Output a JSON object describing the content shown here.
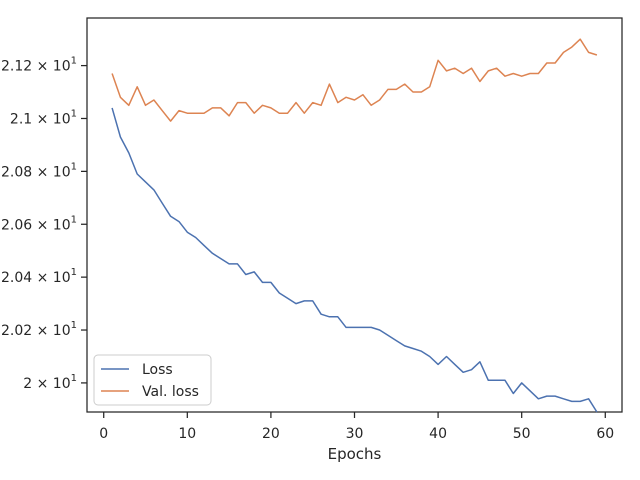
{
  "chart_data": {
    "type": "line",
    "xlabel": "Epochs",
    "ylabel": "",
    "xlim": [
      -2,
      62
    ],
    "ylim": [
      19.89,
      21.38
    ],
    "xticks": [
      {
        "value": 0,
        "label": "0"
      },
      {
        "value": 10,
        "label": "10"
      },
      {
        "value": 20,
        "label": "20"
      },
      {
        "value": 30,
        "label": "30"
      },
      {
        "value": 40,
        "label": "40"
      },
      {
        "value": 50,
        "label": "50"
      },
      {
        "value": 60,
        "label": "60"
      }
    ],
    "yticks": [
      {
        "value": 20.0,
        "mantissa": "2",
        "exp": "1"
      },
      {
        "value": 20.2,
        "mantissa": "2.02",
        "exp": "1"
      },
      {
        "value": 20.4,
        "mantissa": "2.04",
        "exp": "1"
      },
      {
        "value": 20.6,
        "mantissa": "2.06",
        "exp": "1"
      },
      {
        "value": 20.8,
        "mantissa": "2.08",
        "exp": "1"
      },
      {
        "value": 21.0,
        "mantissa": "2.1",
        "exp": "1"
      },
      {
        "value": 21.2,
        "mantissa": "2.12",
        "exp": "1"
      }
    ],
    "legend_position": "lower-left",
    "grid": false,
    "x": [
      1,
      2,
      3,
      4,
      5,
      6,
      7,
      8,
      9,
      10,
      11,
      12,
      13,
      14,
      15,
      16,
      17,
      18,
      19,
      20,
      21,
      22,
      23,
      24,
      25,
      26,
      27,
      28,
      29,
      30,
      31,
      32,
      33,
      34,
      35,
      36,
      37,
      38,
      39,
      40,
      41,
      42,
      43,
      44,
      45,
      46,
      47,
      48,
      49,
      50,
      51,
      52,
      53,
      54,
      55,
      56,
      57,
      58,
      59
    ],
    "series": [
      {
        "name": "Loss",
        "color": "#4c72b0",
        "values": [
          21.04,
          20.93,
          20.87,
          20.79,
          20.76,
          20.73,
          20.68,
          20.63,
          20.61,
          20.57,
          20.55,
          20.52,
          20.49,
          20.47,
          20.45,
          20.45,
          20.41,
          20.42,
          20.38,
          20.38,
          20.34,
          20.32,
          20.3,
          20.31,
          20.31,
          20.26,
          20.25,
          20.25,
          20.21,
          20.21,
          20.21,
          20.21,
          20.2,
          20.18,
          20.16,
          20.14,
          20.13,
          20.12,
          20.1,
          20.07,
          20.1,
          20.07,
          20.04,
          20.05,
          20.08,
          20.01,
          20.01,
          20.01,
          19.96,
          20.0,
          19.97,
          19.94,
          19.95,
          19.95,
          19.94,
          19.93,
          19.93,
          19.94,
          19.89
        ]
      },
      {
        "name": "Val. loss",
        "color": "#dd8452",
        "values": [
          21.17,
          21.08,
          21.05,
          21.12,
          21.05,
          21.07,
          21.03,
          20.99,
          21.03,
          21.02,
          21.02,
          21.02,
          21.04,
          21.04,
          21.01,
          21.06,
          21.06,
          21.02,
          21.05,
          21.04,
          21.02,
          21.02,
          21.06,
          21.02,
          21.06,
          21.05,
          21.13,
          21.06,
          21.08,
          21.07,
          21.09,
          21.05,
          21.07,
          21.11,
          21.11,
          21.13,
          21.1,
          21.1,
          21.12,
          21.22,
          21.18,
          21.19,
          21.17,
          21.19,
          21.14,
          21.18,
          21.19,
          21.16,
          21.17,
          21.16,
          21.17,
          21.17,
          21.21,
          21.21,
          21.25,
          21.27,
          21.3,
          21.25,
          21.24
        ]
      }
    ]
  }
}
